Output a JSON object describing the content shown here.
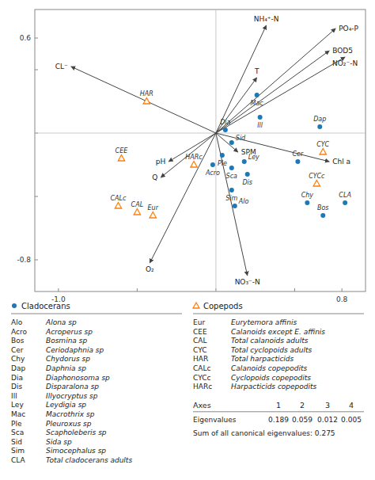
{
  "chart_data": {
    "type": "biplot",
    "xlim": [
      -1.15,
      0.95
    ],
    "ylim": [
      -1.0,
      0.78
    ],
    "xticks": [
      {
        "value": -1.0,
        "label": "-1.0"
      },
      {
        "value": -0.5,
        "label": null
      },
      {
        "value": 0.0,
        "label": null
      },
      {
        "value": 0.5,
        "label": null
      },
      0.8
    ],
    "yticks": [
      -0.8,
      {
        "value": -0.4,
        "label": null
      },
      {
        "value": 0.0,
        "label": null
      },
      {
        "value": 0.4,
        "label": null
      },
      0.6
    ],
    "arrows": [
      {
        "name": "NH₄⁺-N",
        "x": 0.32,
        "y": 0.68
      },
      {
        "name": "PO₄-P",
        "x": 0.76,
        "y": 0.66
      },
      {
        "name": "BOD5",
        "x": 0.72,
        "y": 0.52
      },
      {
        "name": "NO₂⁻-N",
        "x": 0.82,
        "y": 0.48
      },
      {
        "name": "T",
        "x": 0.26,
        "y": 0.35
      },
      {
        "name": "CL⁻",
        "x": -0.92,
        "y": 0.42
      },
      {
        "name": "SPM",
        "x": 0.14,
        "y": -0.12
      },
      {
        "name": "Chl a",
        "x": 0.72,
        "y": -0.18
      },
      {
        "name": "pH",
        "x": -0.3,
        "y": -0.18
      },
      {
        "name": "Q",
        "x": -0.35,
        "y": -0.28
      },
      {
        "name": "O₂",
        "x": -0.42,
        "y": -0.82
      },
      {
        "name": "NO₃⁻-N",
        "x": 0.2,
        "y": -0.9
      }
    ],
    "series": [
      {
        "name": "Cladocerans",
        "marker": "circle",
        "labels": [
          "Mac",
          "Ill",
          "Dia",
          "Sid",
          "Dap",
          "Ple",
          "Ley",
          "Sca",
          "Dis",
          "Acro",
          "Sim",
          "Alo",
          "Cer",
          "Chy",
          "Bos",
          "CLA"
        ],
        "x": [
          0.26,
          0.28,
          0.06,
          0.1,
          0.66,
          0.04,
          0.18,
          0.1,
          0.2,
          -0.02,
          0.1,
          0.12,
          0.52,
          0.58,
          0.68,
          0.82
        ],
        "y": [
          0.24,
          0.1,
          0.02,
          -0.06,
          0.04,
          -0.14,
          -0.18,
          -0.22,
          -0.26,
          -0.2,
          -0.36,
          -0.46,
          -0.18,
          -0.44,
          -0.52,
          -0.44
        ],
        "key": [
          [
            "Alo",
            "Alona sp"
          ],
          [
            "Acro",
            "Acroperus sp"
          ],
          [
            "Bos",
            "Bosmina sp"
          ],
          [
            "Cer",
            "Ceriodaphnia sp"
          ],
          [
            "Chy",
            "Chydorus sp"
          ],
          [
            "Dap",
            "Daphnia sp"
          ],
          [
            "Dia",
            "Diaphonosoma sp"
          ],
          [
            "Dis",
            "Disparalona sp"
          ],
          [
            "Ill",
            "Illyocryptus sp"
          ],
          [
            "Ley",
            "Leydigia sp"
          ],
          [
            "Mac",
            "Macrothrix sp"
          ],
          [
            "Ple",
            "Pleuroxus sp"
          ],
          [
            "Sca",
            "Scapholeberis sp"
          ],
          [
            "Sid",
            "Sida sp"
          ],
          [
            "Sim",
            "Simocephalus sp"
          ],
          [
            "CLA",
            "Total cladocerans adults"
          ]
        ]
      },
      {
        "name": "Copepods",
        "marker": "triangle",
        "labels": [
          "HAR",
          "CEE",
          "HARc",
          "CAL",
          "CALc",
          "Eur",
          "CYC",
          "CYCc"
        ],
        "x": [
          -0.44,
          -0.6,
          -0.14,
          -0.5,
          -0.62,
          -0.4,
          0.68,
          0.64
        ],
        "y": [
          0.2,
          -0.16,
          -0.2,
          -0.5,
          -0.46,
          -0.52,
          -0.12,
          -0.32
        ],
        "key": [
          [
            "Eur",
            "Eurytemora affinis"
          ],
          [
            "CEE",
            "Calanoids except E. affinis"
          ],
          [
            "CAL",
            "Total calanoids adults"
          ],
          [
            "CYC",
            "Total cyclopoids adults"
          ],
          [
            "HAR",
            "Total harpacticids"
          ],
          [
            "CALc",
            "Calanoids copepodits"
          ],
          [
            "CYCc",
            "Cyclopoids copepodits"
          ],
          [
            "HARc",
            "Harpacticids copepodits"
          ]
        ]
      }
    ],
    "table": {
      "header": "Axes",
      "axes": [
        1,
        2,
        3,
        4
      ],
      "row_label": "Eigenvalues",
      "eigenvalues": [
        0.189,
        0.059,
        0.012,
        0.005
      ]
    },
    "sum_label": "Sum of all canonical eigenvalues:",
    "sum_canonical": 0.275
  }
}
